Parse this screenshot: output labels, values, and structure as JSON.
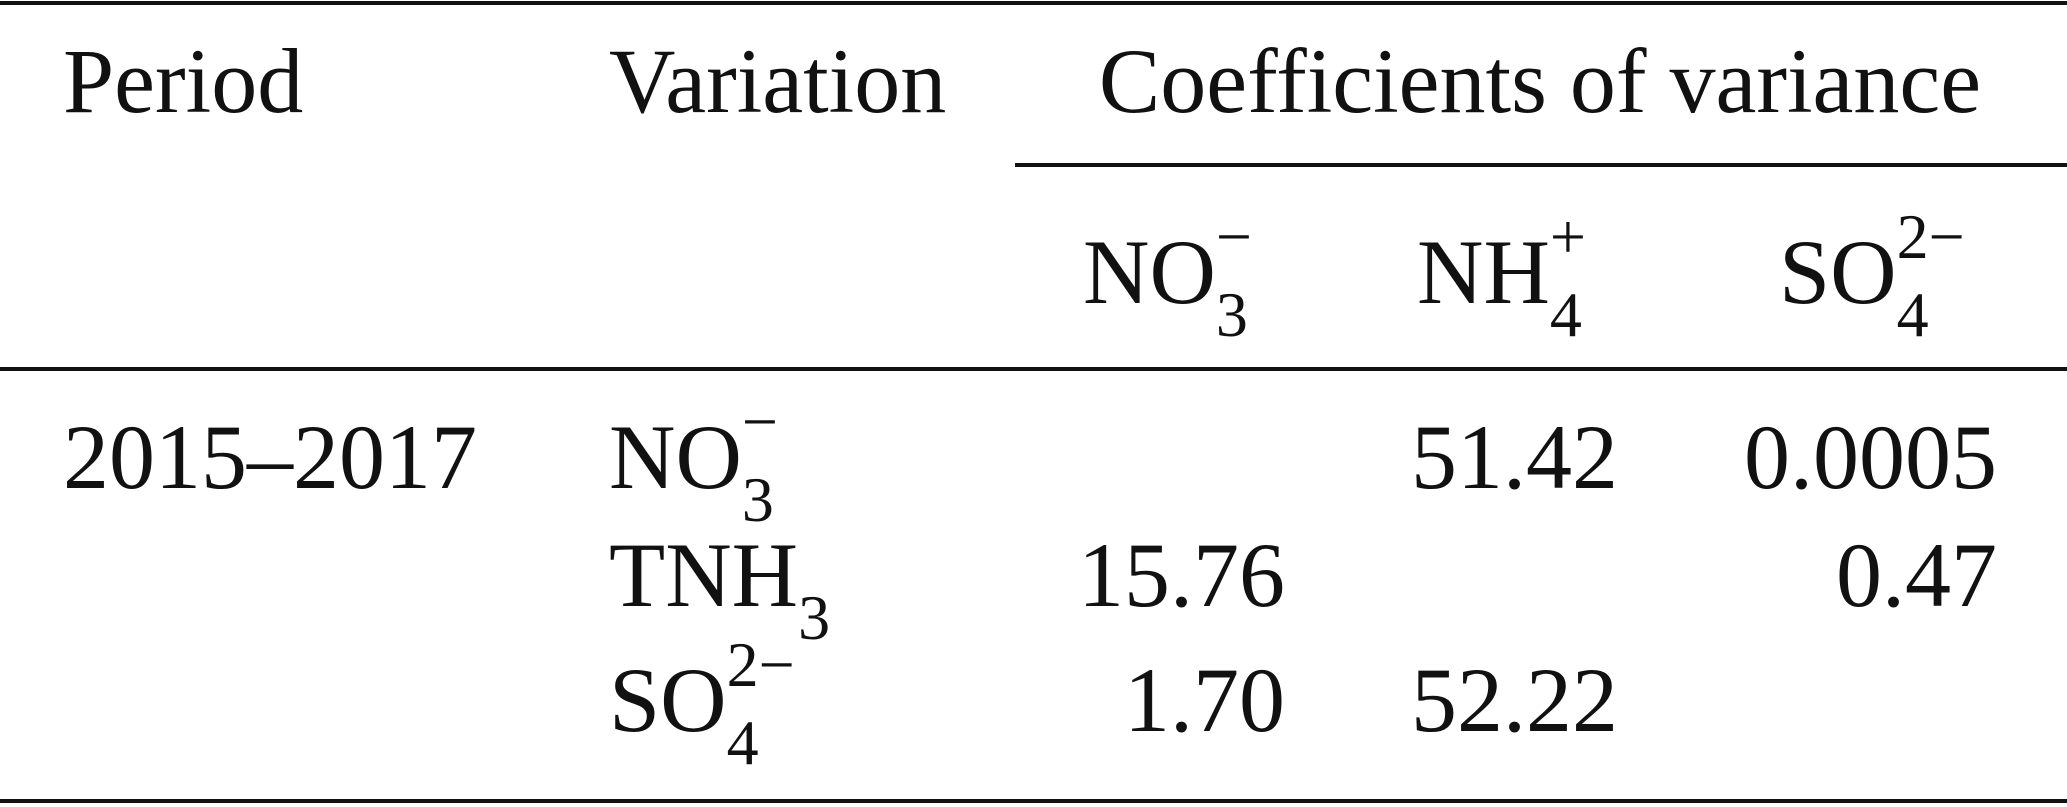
{
  "table": {
    "header": {
      "period": "Period",
      "variation": "Variation",
      "group": "Coefficients of variance",
      "columns": [
        {
          "base": "NO",
          "sub": "3",
          "sup": "−"
        },
        {
          "base": "NH",
          "sub": "4",
          "sup": "+"
        },
        {
          "base": "SO",
          "sub": "4",
          "sup": "2−"
        }
      ]
    },
    "rows": [
      {
        "period": "2015–2017",
        "variation": {
          "base": "NO",
          "sub": "3",
          "sup": "−"
        },
        "cells": [
          null,
          "51.42",
          "0.0005"
        ]
      },
      {
        "period": null,
        "variation": {
          "base": "TNH",
          "sub": "3",
          "sup": null
        },
        "cells": [
          "15.76",
          null,
          "0.47"
        ]
      },
      {
        "period": null,
        "variation": {
          "base": "SO",
          "sub": "4",
          "sup": "2−"
        },
        "cells": [
          "1.70",
          "52.22",
          null
        ]
      }
    ]
  }
}
